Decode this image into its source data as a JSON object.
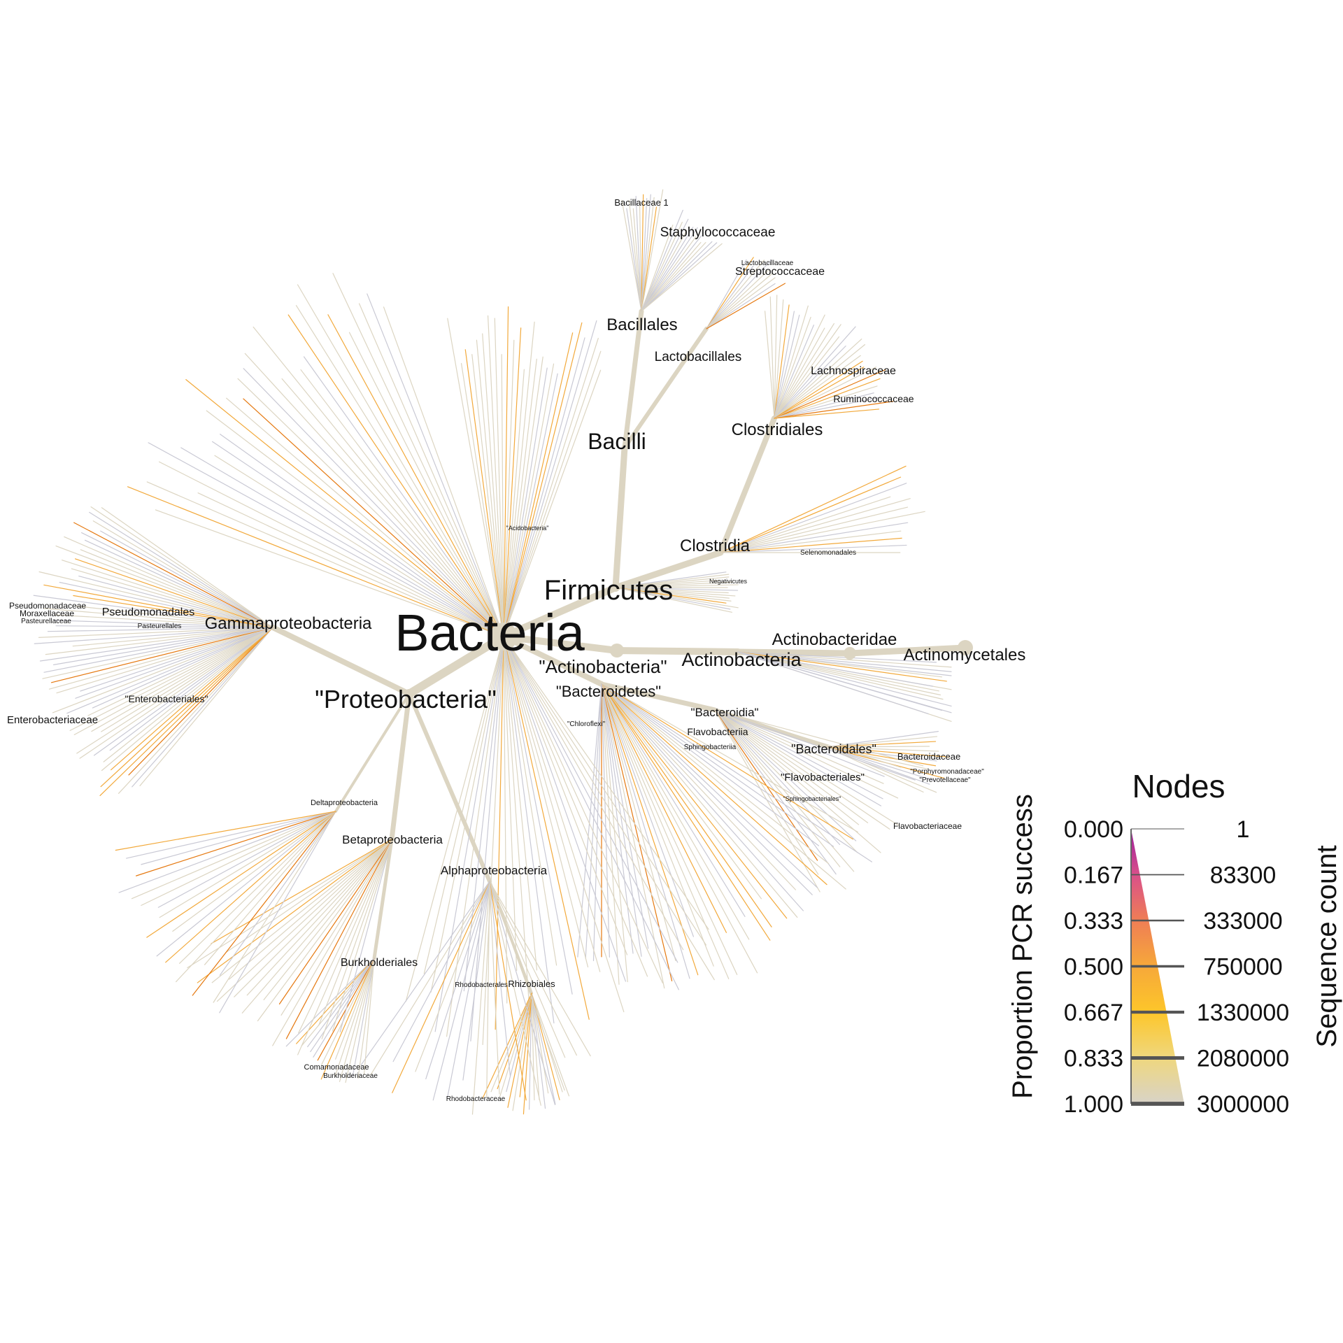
{
  "tree": {
    "root_label": "Bacteria",
    "labels": {
      "firmicutes": "Firmicutes",
      "bacilli": "Bacilli",
      "bacillales": "Bacillales",
      "bacillaceae1": "Bacillaceae 1",
      "staphylococcaceae": "Staphylococcaceae",
      "lactobacillales": "Lactobacillales",
      "lactobacillaceae": "Lactobacillaceae",
      "streptococcaceae": "Streptococcaceae",
      "clostridia": "Clostridia",
      "clostridiales": "Clostridiales",
      "lachnospiraceae": "Lachnospiraceae",
      "ruminococcaceae": "Ruminococcaceae",
      "selenomonadales": "Selenomonadales",
      "negativicutes": "Negativicutes",
      "acidobacteria": "\"Acidobacteria\"",
      "actinobacteria_phylum": "\"Actinobacteria\"",
      "actinobacteria_class": "Actinobacteria",
      "actinobacteridae": "Actinobacteridae",
      "actinomycetales": "Actinomycetales",
      "bacteroidetes": "\"Bacteroidetes\"",
      "bacteroidia": "\"Bacteroidia\"",
      "flavobacteriia": "Flavobacteriia",
      "sphingobacteriia": "Sphingobacteriia",
      "bacteroidales": "\"Bacteroidales\"",
      "bacteroidaceae": "Bacteroidaceae",
      "porphyromonadaceae": "\"Porphyromonadaceae\"",
      "prevotellaceae": "\"Prevotellaceae\"",
      "flavobacteriales": "\"Flavobacteriales\"",
      "sphingobacteriales": "\"Sphingobacteriales\"",
      "flavobacteriaceae": "Flavobacteriaceae",
      "chloroflexi": "\"Chloroflexi\"",
      "proteobacteria": "\"Proteobacteria\"",
      "gammaproteobacteria": "Gammaproteobacteria",
      "pseudomonadales": "Pseudomonadales",
      "pseudomonadaceae": "Pseudomonadaceae",
      "moraxellaceae": "Moraxellaceae",
      "pasteurellaceae": "Pasteurellaceae",
      "pasteurellales": "Pasteurellales",
      "enterobacteriales": "\"Enterobacteriales\"",
      "enterobacteriaceae": "Enterobacteriaceae",
      "deltaproteobacteria": "Deltaproteobacteria",
      "betaproteobacteria": "Betaproteobacteria",
      "burkholderiales": "Burkholderiales",
      "comamonadaceae": "Comamonadaceae",
      "burkholderiaceae": "Burkholderiaceae",
      "alphaproteobacteria": "Alphaproteobacteria",
      "rhodobacterales": "Rhodobacterales",
      "rhizobiales": "Rhizobiales",
      "rhodobacteraceae": "Rhodobacteraceae"
    }
  },
  "legend": {
    "title": "Nodes",
    "color_axis_title": "Proportion PCR success",
    "size_axis_title": "Sequence count",
    "color_ticks": [
      "0.000",
      "0.167",
      "0.333",
      "0.500",
      "0.667",
      "0.833",
      "1.000"
    ],
    "size_ticks": [
      "1",
      "83300",
      "333000",
      "750000",
      "1330000",
      "2080000",
      "3000000"
    ],
    "gradient_colors": [
      "#9c1f9c",
      "#d9508a",
      "#ef7e55",
      "#f6a83a",
      "#fdc62a",
      "#efd77e",
      "#d8d3c8"
    ]
  },
  "colors": {
    "branch": "#dcd5c2",
    "branch_orange": "#f2a93b",
    "branch_dark_orange": "#e5780f",
    "branch_grey": "#c9c9d4"
  }
}
